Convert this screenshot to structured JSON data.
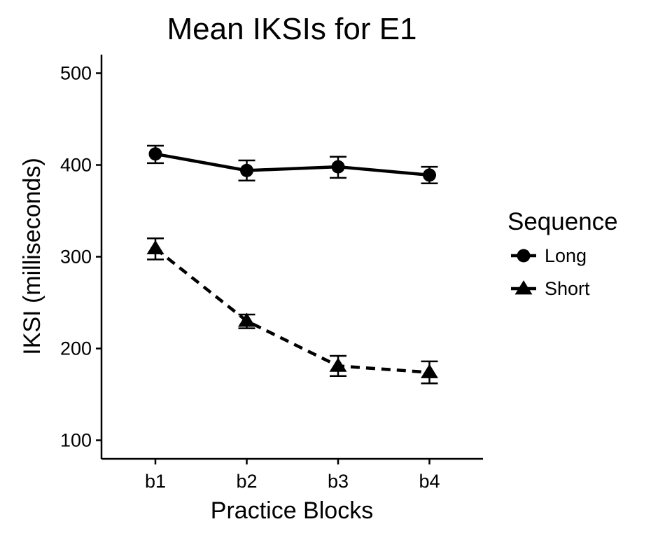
{
  "chart_data": {
    "type": "line",
    "title": "Mean IKSIs for E1",
    "xlabel": "Practice Blocks",
    "ylabel": "IKSI (milliseconds)",
    "categories": [
      "b1",
      "b2",
      "b3",
      "b4"
    ],
    "ylim": [
      80,
      520
    ],
    "yticks": [
      100,
      200,
      300,
      400,
      500
    ],
    "grid": false,
    "legend": {
      "title": "Sequence",
      "position": "right"
    },
    "series": [
      {
        "name": "Long",
        "marker": "circle",
        "line": "solid",
        "values": [
          412,
          394,
          398,
          389
        ],
        "error_low": [
          402,
          383,
          386,
          380
        ],
        "error_high": [
          421,
          405,
          409,
          398
        ]
      },
      {
        "name": "Short",
        "marker": "triangle",
        "line": "dashed",
        "values": [
          309,
          230,
          181,
          174
        ],
        "error_low": [
          297,
          222,
          170,
          162
        ],
        "error_high": [
          320,
          237,
          192,
          186
        ]
      }
    ],
    "color": "#000000"
  }
}
